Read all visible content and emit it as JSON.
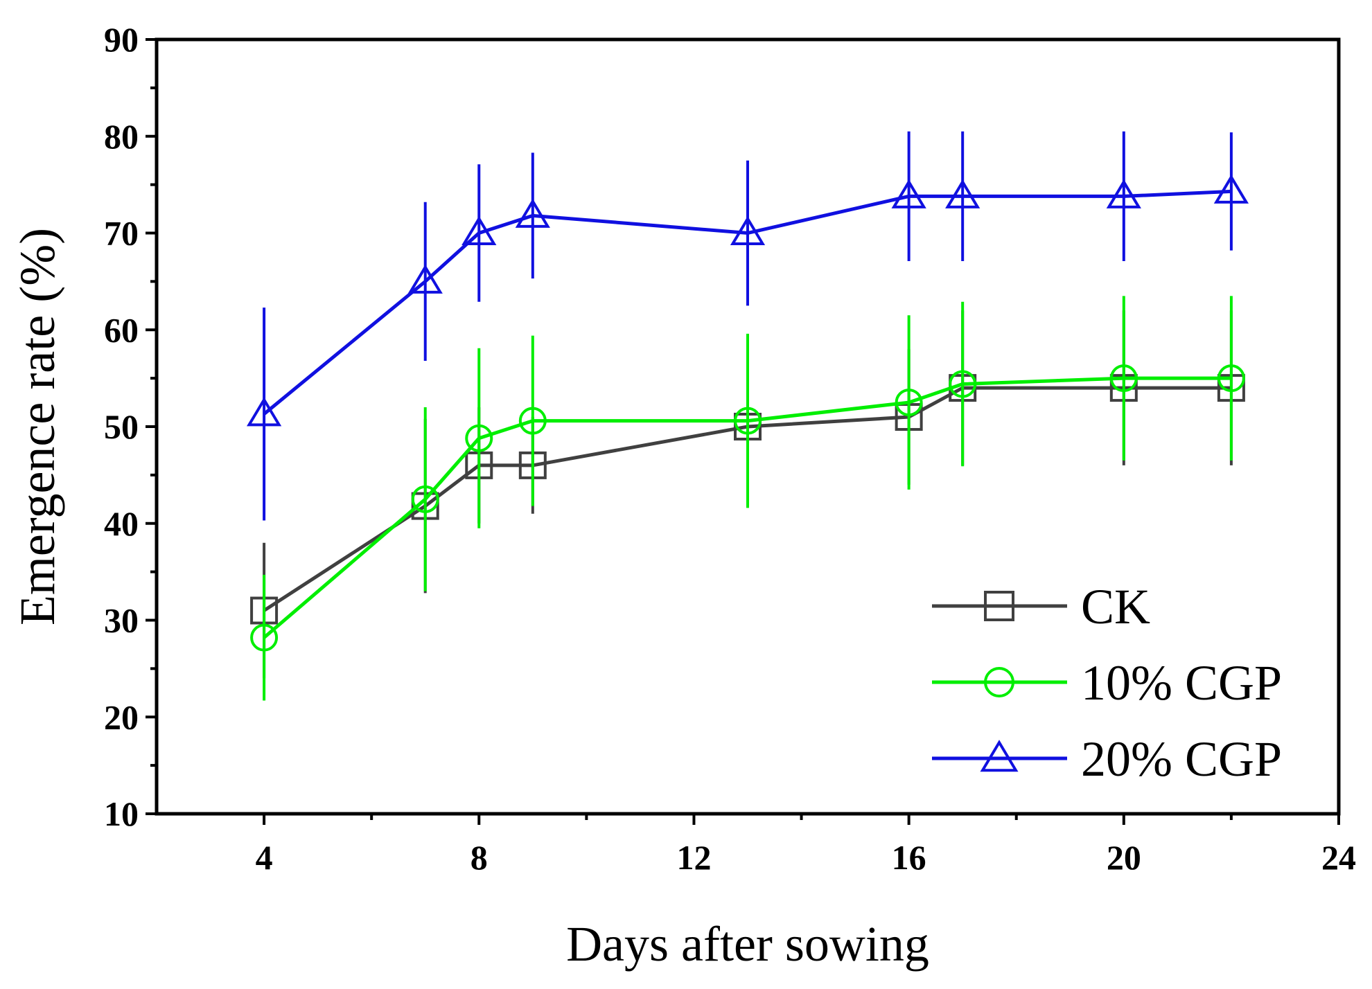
{
  "chart_data": {
    "type": "line",
    "title": "",
    "xlabel": "Days after sowing",
    "ylabel": "Emergence rate (%)",
    "xlim": [
      2,
      24
    ],
    "ylim": [
      10,
      90
    ],
    "xticks": [
      4,
      8,
      12,
      16,
      20,
      24
    ],
    "yticks": [
      10,
      20,
      30,
      40,
      50,
      60,
      70,
      80,
      90
    ],
    "x": [
      4,
      7,
      8,
      9,
      13,
      16,
      17,
      20,
      22
    ],
    "legend_position": "bottom-right",
    "series": [
      {
        "name": "CK",
        "color": "#404040",
        "marker": "square",
        "values": [
          31,
          41.8,
          46,
          46,
          50,
          51,
          54,
          54,
          54
        ],
        "errors": [
          7,
          9,
          6,
          5,
          8,
          7,
          8,
          8,
          8
        ]
      },
      {
        "name": "10% CGP",
        "color": "#00ee00",
        "marker": "circle",
        "values": [
          28.2,
          42.5,
          48.8,
          50.6,
          50.6,
          52.5,
          54.4,
          55,
          55
        ],
        "errors": [
          6.5,
          9.5,
          9.3,
          8.8,
          9,
          9,
          8.5,
          8.5,
          8.5
        ]
      },
      {
        "name": "20% CGP",
        "color": "#1010e0",
        "marker": "triangle",
        "values": [
          51.3,
          65,
          70,
          71.8,
          70,
          73.8,
          73.8,
          73.8,
          74.3
        ],
        "errors": [
          11,
          8.2,
          7.1,
          6.5,
          7.5,
          6.7,
          6.7,
          6.7,
          6.1
        ]
      }
    ]
  }
}
